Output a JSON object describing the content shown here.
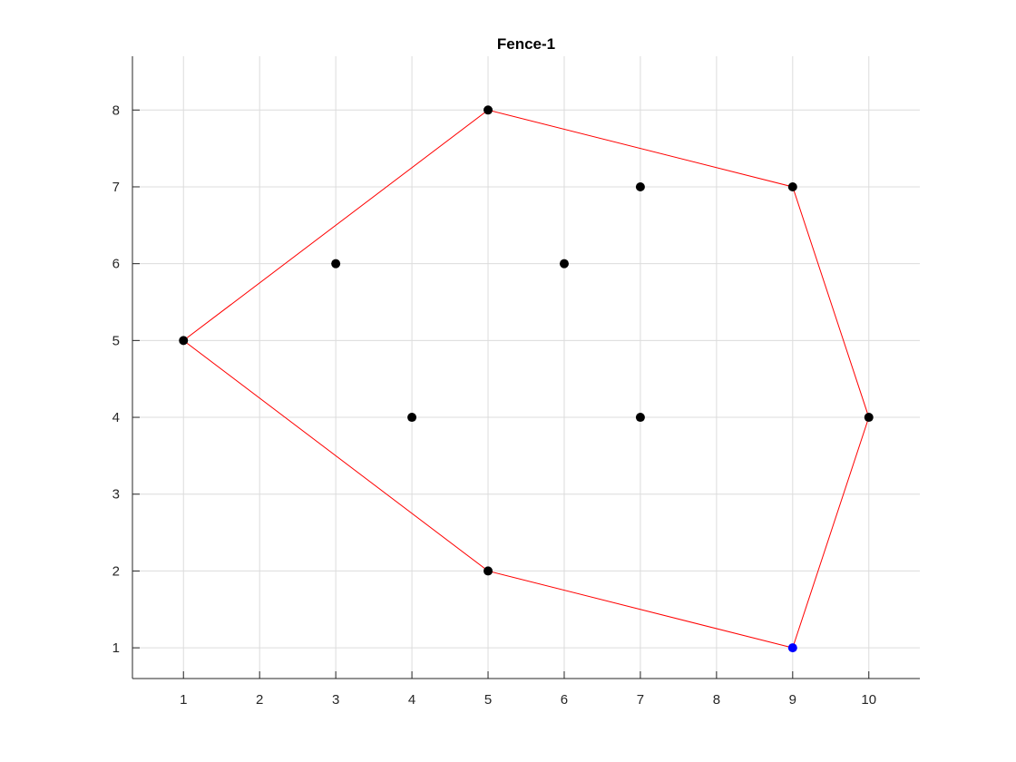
{
  "chart_data": {
    "type": "scatter",
    "title": "Fence-1",
    "xlabel": "",
    "ylabel": "",
    "xlim": [
      0.33,
      10.67
    ],
    "ylim": [
      0.6,
      8.7
    ],
    "xticks": [
      1,
      2,
      3,
      4,
      5,
      6,
      7,
      8,
      9,
      10
    ],
    "yticks": [
      1,
      2,
      3,
      4,
      5,
      6,
      7,
      8
    ],
    "grid": true,
    "points": [
      {
        "x": 1,
        "y": 5
      },
      {
        "x": 3,
        "y": 6
      },
      {
        "x": 4,
        "y": 4
      },
      {
        "x": 5,
        "y": 8
      },
      {
        "x": 5,
        "y": 2
      },
      {
        "x": 6,
        "y": 6
      },
      {
        "x": 7,
        "y": 7
      },
      {
        "x": 7,
        "y": 4
      },
      {
        "x": 9,
        "y": 7
      },
      {
        "x": 10,
        "y": 4
      }
    ],
    "highlight_point": {
      "x": 9,
      "y": 1
    },
    "hull": [
      {
        "x": 9,
        "y": 1
      },
      {
        "x": 10,
        "y": 4
      },
      {
        "x": 9,
        "y": 7
      },
      {
        "x": 5,
        "y": 8
      },
      {
        "x": 1,
        "y": 5
      },
      {
        "x": 5,
        "y": 2
      },
      {
        "x": 9,
        "y": 1
      }
    ],
    "colors": {
      "points": "#000000",
      "highlight": "#0000ff",
      "hull": "#ff0000",
      "axis": "#262626",
      "grid": "#dcdcdc"
    }
  }
}
